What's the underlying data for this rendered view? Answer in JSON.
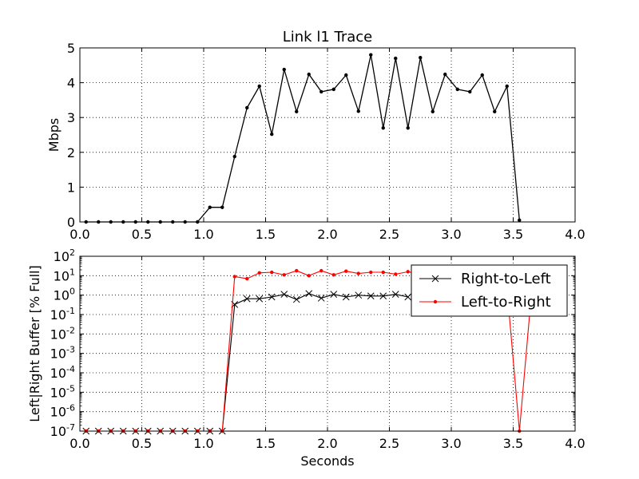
{
  "chart_data": [
    {
      "type": "line",
      "title": "Link l1 Trace",
      "xlabel": "",
      "ylabel": "Mbps",
      "xlim": [
        0,
        4.0
      ],
      "ylim": [
        0,
        5
      ],
      "grid": true,
      "x_ticks": [
        "0.0",
        "0.5",
        "1.0",
        "1.5",
        "2.0",
        "2.5",
        "3.0",
        "3.5",
        "4.0"
      ],
      "y_ticks": [
        "0",
        "1",
        "2",
        "3",
        "4",
        "5"
      ],
      "series": [
        {
          "color": "#000000",
          "marker": "dot",
          "x": [
            0.05,
            0.15,
            0.25,
            0.35,
            0.45,
            0.55,
            0.65,
            0.75,
            0.85,
            0.95,
            1.05,
            1.15,
            1.25,
            1.35,
            1.45,
            1.55,
            1.65,
            1.75,
            1.85,
            1.95,
            2.05,
            2.15,
            2.25,
            2.35,
            2.45,
            2.55,
            2.65,
            2.75,
            2.85,
            2.95,
            3.05,
            3.15,
            3.25,
            3.35,
            3.45,
            3.55
          ],
          "y": [
            0,
            0,
            0,
            0,
            0,
            0,
            0,
            0,
            0,
            0,
            0.42,
            0.42,
            1.88,
            3.28,
            3.9,
            2.52,
            4.38,
            3.17,
            4.24,
            3.74,
            3.81,
            4.22,
            3.18,
            4.8,
            2.7,
            4.7,
            2.7,
            4.72,
            3.17,
            4.24,
            3.81,
            3.74,
            4.22,
            3.17,
            3.9,
            0.05
          ]
        }
      ]
    },
    {
      "type": "line",
      "title": "",
      "xlabel": "Seconds",
      "ylabel": "Left|Right Buffer [% Full]",
      "xlim": [
        0,
        4.0
      ],
      "ylim": [
        "1e-7",
        "1e2"
      ],
      "yscale": "log",
      "grid": true,
      "legend_position": "top-right",
      "x_ticks": [
        "0.0",
        "0.5",
        "1.0",
        "1.5",
        "2.0",
        "2.5",
        "3.0",
        "3.5",
        "4.0"
      ],
      "y_ticks": [
        {
          "base": "10",
          "exp": "2"
        },
        {
          "base": "10",
          "exp": "1"
        },
        {
          "base": "10",
          "exp": "0"
        },
        {
          "base": "10",
          "exp": "-1"
        },
        {
          "base": "10",
          "exp": "-2"
        },
        {
          "base": "10",
          "exp": "-3"
        },
        {
          "base": "10",
          "exp": "-4"
        },
        {
          "base": "10",
          "exp": "-5"
        },
        {
          "base": "10",
          "exp": "-6"
        },
        {
          "base": "10",
          "exp": "-7"
        }
      ],
      "series": [
        {
          "name": "Right-to-Left",
          "color": "#000000",
          "marker": "x",
          "x": [
            0.05,
            0.15,
            0.25,
            0.35,
            0.45,
            0.55,
            0.65,
            0.75,
            0.85,
            0.95,
            1.05,
            1.15,
            1.25,
            1.35,
            1.45,
            1.55,
            1.65,
            1.75,
            1.85,
            1.95,
            2.05,
            2.15,
            2.25,
            2.35,
            2.45,
            2.55,
            2.65
          ],
          "y": [
            1e-07,
            1e-07,
            1e-07,
            1e-07,
            1e-07,
            1e-07,
            1e-07,
            1e-07,
            1e-07,
            1e-07,
            1e-07,
            1e-07,
            0.33,
            0.65,
            0.65,
            0.8,
            1.1,
            0.6,
            1.2,
            0.7,
            1.1,
            0.8,
            1.0,
            0.9,
            0.9,
            1.1,
            0.8
          ]
        },
        {
          "name": "Left-to-Right",
          "color": "#ff0000",
          "marker": "dot",
          "x": [
            0.05,
            0.15,
            0.25,
            0.35,
            0.45,
            0.55,
            0.65,
            0.75,
            0.85,
            0.95,
            1.05,
            1.15,
            1.25,
            1.35,
            1.45,
            1.55,
            1.65,
            1.75,
            1.85,
            1.95,
            2.05,
            2.15,
            2.25,
            2.35,
            2.45,
            2.55,
            2.65,
            3.45,
            3.55,
            3.65
          ],
          "y": [
            1e-07,
            1e-07,
            1e-07,
            1e-07,
            1e-07,
            1e-07,
            1e-07,
            1e-07,
            1e-07,
            1e-07,
            1e-07,
            1e-07,
            9,
            7,
            14,
            15,
            11,
            18,
            10,
            18,
            11,
            17,
            13,
            15,
            15,
            12,
            16,
            2,
            1e-07,
            2
          ]
        }
      ]
    }
  ]
}
